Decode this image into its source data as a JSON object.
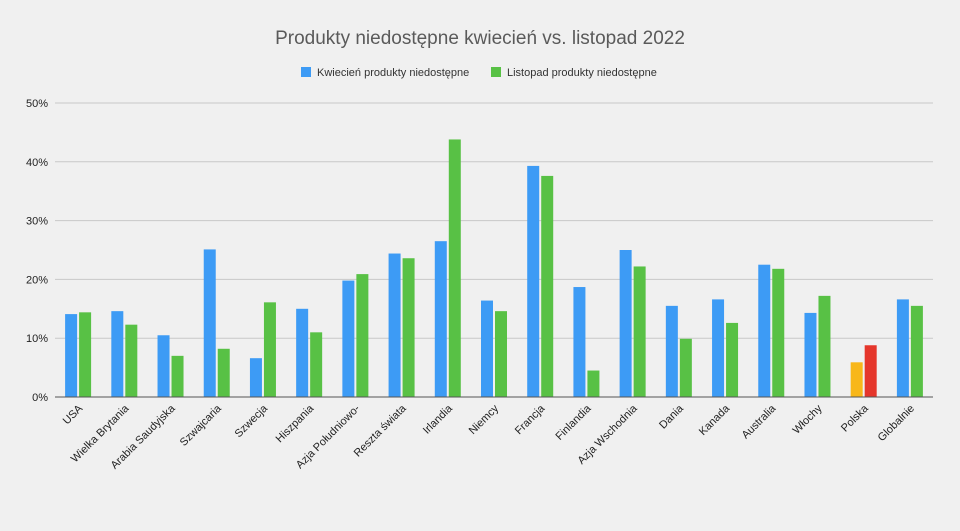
{
  "chart_data": {
    "type": "bar",
    "title": "Produkty niedostępne kwiecień vs. listopad 2022",
    "xlabel": "",
    "ylabel": "",
    "ylim": [
      0,
      50
    ],
    "y_ticks": [
      "0%",
      "10%",
      "20%",
      "30%",
      "40%",
      "50%"
    ],
    "y_tick_values": [
      0,
      10,
      20,
      30,
      40,
      50
    ],
    "grid": true,
    "legend_position": "top-center",
    "categories": [
      "USA",
      "Wielka Brytania",
      "Arabia Saudyjska",
      "Szwajcaria",
      "Szwecja",
      "Hiszpania",
      "Azja Południowo-",
      "Reszta świata",
      "Irlandia",
      "Niemcy",
      "Francja",
      "Finlandia",
      "Azja Wschodnia",
      "Dania",
      "Kanada",
      "Australia",
      "Włochy",
      "Polska",
      "Globalnie"
    ],
    "series": [
      {
        "name": "Kwiecień produkty niedostępne",
        "color": "#3d9bf5",
        "values": [
          14.1,
          14.6,
          10.5,
          25.1,
          6.6,
          15.0,
          19.8,
          24.4,
          26.5,
          16.4,
          39.3,
          18.7,
          25.0,
          15.5,
          16.6,
          22.5,
          14.3,
          5.9,
          16.6
        ]
      },
      {
        "name": "Listopad produkty niedostępne",
        "color": "#58c145",
        "values": [
          14.4,
          12.3,
          7.0,
          8.2,
          16.1,
          11.0,
          20.9,
          23.6,
          43.8,
          14.6,
          37.6,
          4.5,
          22.2,
          9.9,
          12.6,
          21.8,
          17.2,
          8.8,
          15.5
        ]
      }
    ],
    "highlight": {
      "category": "Polska",
      "colors": [
        "#f8b719",
        "#e5362b"
      ]
    }
  }
}
